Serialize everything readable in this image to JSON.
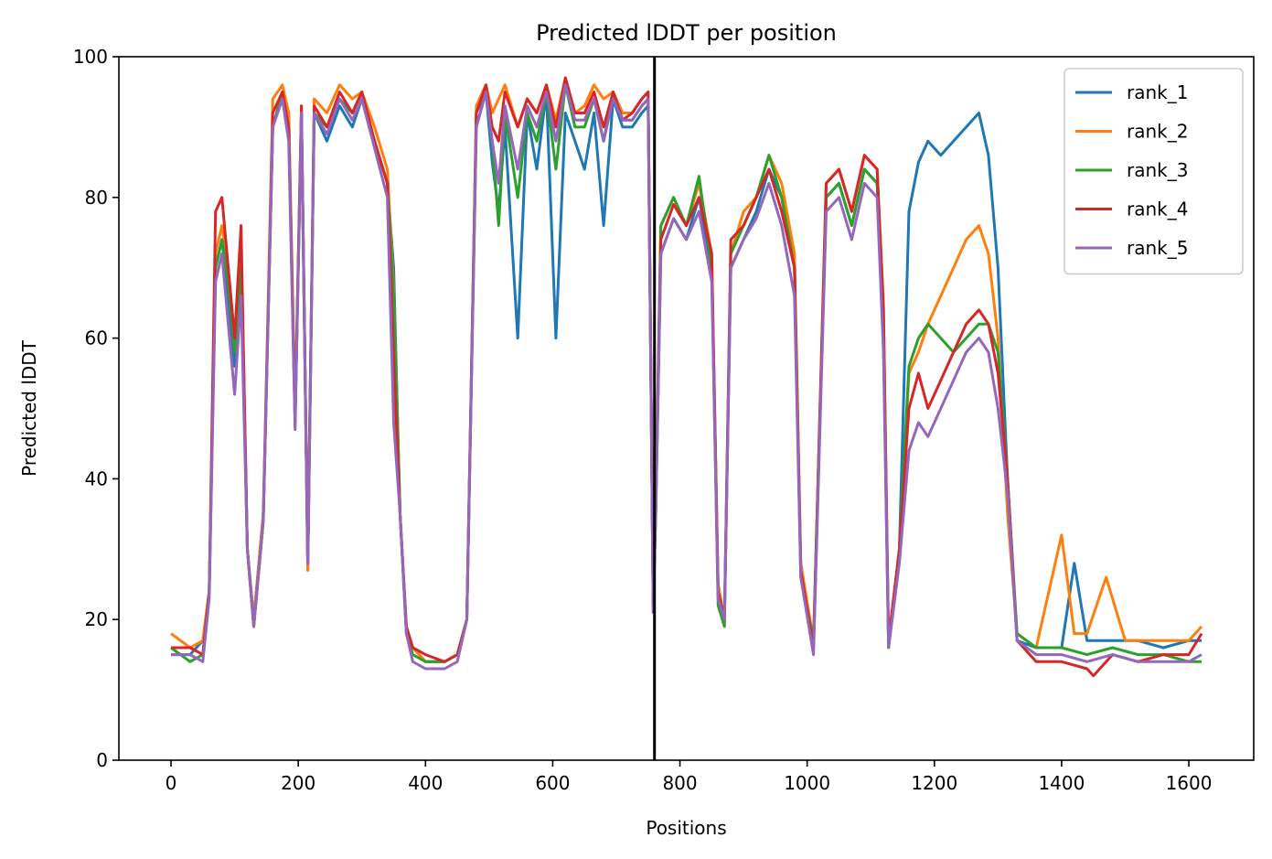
{
  "chart_data": {
    "type": "line",
    "title": "Predicted lDDT per position",
    "xlabel": "Positions",
    "ylabel": "Predicted lDDT",
    "xlim": [
      -82,
      1702
    ],
    "ylim": [
      0,
      100
    ],
    "x_ticks": [
      0,
      200,
      400,
      600,
      800,
      1000,
      1200,
      1400,
      1600
    ],
    "y_ticks": [
      0,
      20,
      40,
      60,
      80,
      100
    ],
    "grid": false,
    "legend": "top-right",
    "divider_x": 760,
    "divider_color": "#000000",
    "series": [
      {
        "name": "rank_1",
        "color": "#1f77b4",
        "x": [
          0,
          30,
          50,
          60,
          70,
          80,
          90,
          100,
          110,
          120,
          130,
          145,
          160,
          175,
          185,
          195,
          205,
          215,
          225,
          245,
          265,
          285,
          300,
          320,
          340,
          350,
          360,
          370,
          380,
          400,
          430,
          450,
          465,
          480,
          495,
          505,
          515,
          525,
          545,
          560,
          575,
          590,
          605,
          620,
          635,
          650,
          665,
          680,
          695,
          710,
          725,
          740,
          750,
          758,
          762,
          770,
          790,
          810,
          830,
          850,
          860,
          870,
          880,
          900,
          920,
          940,
          960,
          980,
          990,
          1010,
          1030,
          1050,
          1070,
          1090,
          1110,
          1120,
          1128,
          1145,
          1160,
          1175,
          1190,
          1210,
          1230,
          1250,
          1270,
          1285,
          1300,
          1315,
          1330,
          1360,
          1400,
          1420,
          1440,
          1480,
          1520,
          1560,
          1600,
          1620
        ],
        "values": [
          15,
          15,
          17,
          24,
          70,
          74,
          66,
          56,
          72,
          30,
          20,
          35,
          90,
          95,
          92,
          48,
          92,
          27,
          92,
          88,
          93,
          90,
          94,
          88,
          82,
          70,
          35,
          18,
          16,
          14,
          14,
          15,
          20,
          92,
          95,
          85,
          78,
          90,
          60,
          92,
          84,
          95,
          60,
          92,
          88,
          84,
          92,
          76,
          94,
          90,
          90,
          92,
          93,
          22,
          35,
          72,
          77,
          74,
          80,
          70,
          25,
          20,
          70,
          74,
          78,
          84,
          80,
          70,
          28,
          16,
          80,
          82,
          76,
          84,
          82,
          60,
          16,
          30,
          78,
          85,
          88,
          86,
          88,
          90,
          92,
          86,
          70,
          40,
          17,
          16,
          16,
          28,
          17,
          17,
          17,
          16,
          17,
          17
        ]
      },
      {
        "name": "rank_2",
        "color": "#ff7f0e",
        "x": [
          0,
          30,
          50,
          60,
          70,
          80,
          90,
          100,
          110,
          120,
          130,
          145,
          160,
          175,
          185,
          195,
          205,
          215,
          225,
          245,
          265,
          285,
          300,
          320,
          340,
          350,
          360,
          370,
          380,
          400,
          430,
          450,
          465,
          480,
          495,
          505,
          515,
          525,
          545,
          560,
          575,
          590,
          605,
          620,
          635,
          650,
          665,
          680,
          695,
          710,
          725,
          740,
          750,
          758,
          762,
          770,
          790,
          810,
          830,
          850,
          860,
          870,
          880,
          900,
          920,
          940,
          960,
          980,
          990,
          1010,
          1030,
          1050,
          1070,
          1090,
          1110,
          1120,
          1128,
          1145,
          1160,
          1175,
          1190,
          1210,
          1230,
          1250,
          1270,
          1285,
          1300,
          1315,
          1330,
          1360,
          1400,
          1420,
          1440,
          1470,
          1500,
          1560,
          1600,
          1620
        ],
        "values": [
          18,
          16,
          17,
          24,
          72,
          76,
          70,
          60,
          74,
          30,
          20,
          35,
          94,
          96,
          92,
          50,
          93,
          27,
          94,
          92,
          96,
          94,
          95,
          90,
          84,
          67,
          35,
          19,
          16,
          14,
          14,
          15,
          20,
          93,
          96,
          92,
          94,
          96,
          90,
          94,
          92,
          96,
          91,
          97,
          92,
          93,
          96,
          94,
          95,
          92,
          92,
          94,
          95,
          22,
          37,
          76,
          80,
          76,
          82,
          72,
          25,
          20,
          72,
          78,
          80,
          86,
          82,
          72,
          28,
          17,
          82,
          84,
          78,
          86,
          84,
          65,
          17,
          30,
          55,
          58,
          62,
          66,
          70,
          74,
          76,
          72,
          60,
          35,
          18,
          16,
          32,
          18,
          18,
          26,
          17,
          17,
          17,
          19
        ]
      },
      {
        "name": "rank_3",
        "color": "#2ca02c",
        "x": [
          0,
          30,
          50,
          60,
          70,
          80,
          90,
          100,
          110,
          120,
          130,
          145,
          160,
          175,
          185,
          195,
          205,
          215,
          225,
          245,
          265,
          285,
          300,
          320,
          340,
          350,
          360,
          370,
          380,
          400,
          430,
          450,
          465,
          480,
          495,
          505,
          515,
          525,
          545,
          560,
          575,
          590,
          605,
          620,
          635,
          650,
          665,
          680,
          695,
          710,
          725,
          740,
          750,
          758,
          762,
          770,
          790,
          810,
          830,
          850,
          860,
          870,
          880,
          900,
          920,
          940,
          960,
          980,
          990,
          1010,
          1030,
          1050,
          1070,
          1090,
          1110,
          1120,
          1128,
          1145,
          1160,
          1175,
          1190,
          1210,
          1230,
          1250,
          1270,
          1285,
          1300,
          1315,
          1330,
          1360,
          1400,
          1440,
          1480,
          1520,
          1560,
          1600,
          1620
        ],
        "values": [
          16,
          14,
          15,
          24,
          70,
          74,
          68,
          58,
          70,
          30,
          19,
          34,
          90,
          95,
          90,
          48,
          92,
          28,
          92,
          90,
          94,
          92,
          95,
          88,
          82,
          66,
          35,
          18,
          15,
          14,
          14,
          15,
          20,
          90,
          95,
          88,
          76,
          92,
          80,
          92,
          88,
          95,
          84,
          96,
          90,
          90,
          94,
          88,
          95,
          91,
          91,
          93,
          94,
          21,
          36,
          76,
          80,
          76,
          83,
          70,
          22,
          19,
          72,
          76,
          80,
          86,
          80,
          70,
          26,
          17,
          80,
          82,
          76,
          84,
          82,
          62,
          16,
          30,
          56,
          60,
          62,
          60,
          58,
          60,
          62,
          62,
          58,
          40,
          18,
          16,
          16,
          15,
          16,
          15,
          15,
          14,
          14
        ]
      },
      {
        "name": "rank_4",
        "color": "#d62728",
        "x": [
          0,
          30,
          50,
          60,
          70,
          80,
          90,
          100,
          110,
          120,
          130,
          145,
          160,
          175,
          185,
          195,
          205,
          215,
          225,
          245,
          265,
          285,
          300,
          320,
          340,
          350,
          360,
          370,
          380,
          400,
          430,
          450,
          465,
          480,
          495,
          505,
          515,
          525,
          545,
          560,
          575,
          590,
          605,
          620,
          635,
          650,
          665,
          680,
          695,
          710,
          725,
          740,
          750,
          758,
          762,
          770,
          790,
          810,
          830,
          850,
          860,
          870,
          880,
          900,
          920,
          940,
          960,
          980,
          990,
          1010,
          1030,
          1050,
          1070,
          1090,
          1110,
          1120,
          1128,
          1145,
          1160,
          1175,
          1190,
          1210,
          1230,
          1250,
          1270,
          1285,
          1300,
          1315,
          1330,
          1360,
          1400,
          1440,
          1450,
          1480,
          1520,
          1560,
          1600,
          1620
        ],
        "values": [
          16,
          16,
          15,
          24,
          78,
          80,
          70,
          60,
          76,
          30,
          19,
          34,
          92,
          95,
          90,
          48,
          93,
          28,
          93,
          90,
          95,
          92,
          95,
          88,
          82,
          57,
          35,
          19,
          16,
          15,
          14,
          15,
          20,
          92,
          96,
          90,
          88,
          95,
          90,
          94,
          92,
          96,
          90,
          97,
          92,
          92,
          95,
          90,
          95,
          91,
          92,
          94,
          95,
          22,
          36,
          74,
          79,
          76,
          80,
          72,
          24,
          20,
          74,
          76,
          80,
          84,
          78,
          70,
          27,
          16,
          82,
          84,
          78,
          86,
          84,
          64,
          17,
          30,
          50,
          55,
          50,
          54,
          58,
          62,
          64,
          62,
          55,
          40,
          17,
          14,
          14,
          13,
          12,
          15,
          14,
          15,
          15,
          18
        ]
      },
      {
        "name": "rank_5",
        "color": "#9467bd",
        "x": [
          0,
          30,
          50,
          60,
          70,
          80,
          90,
          100,
          110,
          120,
          130,
          145,
          160,
          175,
          185,
          195,
          205,
          215,
          225,
          245,
          265,
          285,
          300,
          320,
          340,
          350,
          360,
          370,
          380,
          400,
          430,
          450,
          465,
          480,
          495,
          505,
          515,
          525,
          545,
          560,
          575,
          590,
          605,
          620,
          635,
          650,
          665,
          680,
          695,
          710,
          725,
          740,
          750,
          758,
          762,
          770,
          790,
          810,
          830,
          850,
          860,
          870,
          880,
          900,
          920,
          940,
          960,
          980,
          990,
          1010,
          1030,
          1050,
          1070,
          1090,
          1110,
          1120,
          1128,
          1145,
          1160,
          1175,
          1190,
          1210,
          1230,
          1250,
          1270,
          1285,
          1300,
          1315,
          1330,
          1360,
          1400,
          1440,
          1480,
          1520,
          1560,
          1600,
          1620
        ],
        "values": [
          15,
          15,
          14,
          23,
          68,
          72,
          62,
          52,
          66,
          30,
          19,
          34,
          90,
          94,
          88,
          47,
          92,
          28,
          92,
          89,
          94,
          91,
          94,
          87,
          80,
          48,
          35,
          18,
          14,
          13,
          13,
          14,
          20,
          90,
          95,
          88,
          82,
          93,
          84,
          93,
          90,
          95,
          88,
          96,
          91,
          91,
          94,
          88,
          94,
          91,
          91,
          93,
          94,
          21,
          35,
          72,
          77,
          74,
          78,
          68,
          23,
          20,
          70,
          74,
          77,
          82,
          76,
          66,
          26,
          15,
          78,
          80,
          74,
          82,
          80,
          58,
          16,
          28,
          44,
          48,
          46,
          50,
          54,
          58,
          60,
          58,
          50,
          38,
          17,
          15,
          15,
          14,
          15,
          14,
          14,
          14,
          15
        ]
      }
    ]
  }
}
